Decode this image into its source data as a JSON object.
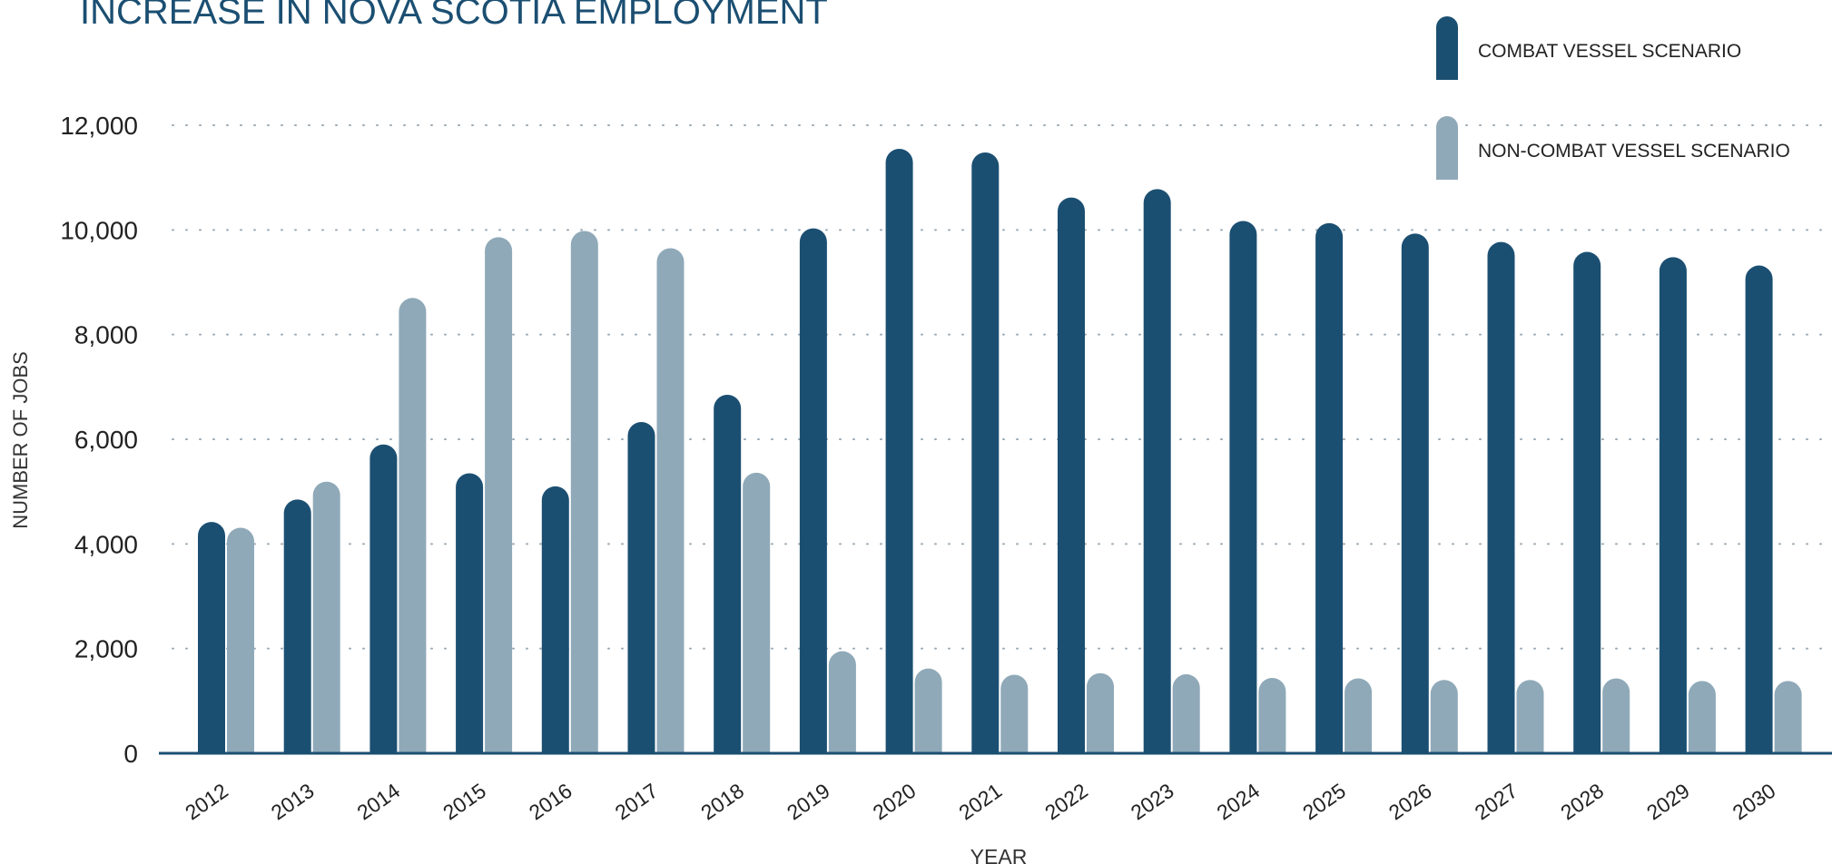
{
  "chart_data": {
    "type": "bar",
    "title": "INCREASE IN NOVA SCOTIA EMPLOYMENT",
    "xlabel": "YEAR",
    "ylabel": "NUMBER OF JOBS",
    "ylim": [
      0,
      12000
    ],
    "yticks": [
      0,
      2000,
      4000,
      6000,
      8000,
      10000,
      12000
    ],
    "ytick_labels": [
      "0",
      "2,000",
      "4,000",
      "6,000",
      "8,000",
      "10,000",
      "12,000"
    ],
    "grid": "dotted horizontal",
    "legend_position": "top-right",
    "categories": [
      "2012",
      "2013",
      "2014",
      "2015",
      "2016",
      "2017",
      "2018",
      "2019",
      "2020",
      "2021",
      "2022",
      "2023",
      "2024",
      "2025",
      "2026",
      "2027",
      "2028",
      "2029",
      "2030"
    ],
    "series": [
      {
        "name": "COMBAT VESSEL SCENARIO",
        "color": "#1b4f72",
        "values": [
          4420,
          4850,
          5900,
          5350,
          5100,
          6330,
          6850,
          10030,
          11550,
          11480,
          10620,
          10780,
          10170,
          10130,
          9930,
          9770,
          9580,
          9480,
          9320
        ]
      },
      {
        "name": "NON-COMBAT VESSEL SCENARIO",
        "color": "#8fa9b8",
        "values": [
          4310,
          5190,
          8700,
          9860,
          9980,
          9650,
          5360,
          1950,
          1620,
          1500,
          1530,
          1510,
          1440,
          1430,
          1400,
          1400,
          1430,
          1380,
          1380
        ]
      }
    ]
  }
}
